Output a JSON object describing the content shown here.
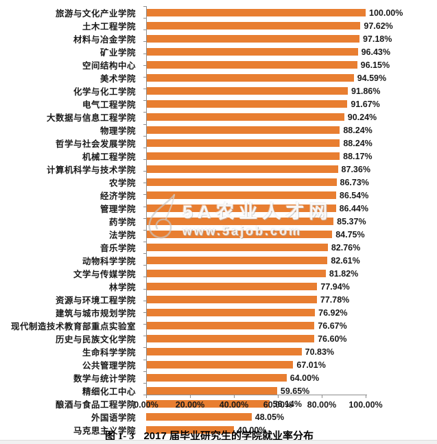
{
  "caption": {
    "figure_label": "图 1- 3",
    "title": "2017 届毕业研究生的学院就业率分布"
  },
  "watermark": {
    "site_name": "5A农业人才网",
    "site_url": "www.5ajob.com"
  },
  "chart_data": {
    "type": "bar",
    "orientation": "horizontal",
    "title": "图 1- 3 2017 届毕业研究生的学院就业率分布",
    "xlabel": "",
    "ylabel": "",
    "xlim": [
      0,
      100
    ],
    "grid": false,
    "legend": "none",
    "bar_color": "#E87E31",
    "axis_color": "#8c8c8c",
    "x_ticks": [
      "0.00%",
      "20.00%",
      "40.00%",
      "60.00%",
      "80.00%",
      "100.00%"
    ],
    "x_tick_values": [
      0,
      20,
      40,
      60,
      80,
      100
    ],
    "categories": [
      "旅游与文化产业学院",
      "土木工程学院",
      "材料与冶金学院",
      "矿业学院",
      "空间结构中心",
      "美术学院",
      "化学与化工学院",
      "电气工程学院",
      "大数据与信息工程学院",
      "物理学院",
      "哲学与社会发展学院",
      "机械工程学院",
      "计算机科学与技术学院",
      "农学院",
      "经济学院",
      "管理学院",
      "药学院",
      "法学院",
      "音乐学院",
      "动物科学学院",
      "文学与传媒学院",
      "林学院",
      "资源与环境工程学院",
      "建筑与城市规划学院",
      "现代制造技术教育部重点实验室",
      "历史与民族文化学院",
      "生命科学学院",
      "公共管理学院",
      "数学与统计学院",
      "精细化工中心",
      "酿酒与食品工程学院",
      "外国语学院",
      "马克思主义学院"
    ],
    "values": [
      100.0,
      97.62,
      97.18,
      96.43,
      96.15,
      94.59,
      91.86,
      91.67,
      90.24,
      88.24,
      88.24,
      88.17,
      87.36,
      86.73,
      86.54,
      86.44,
      85.37,
      84.75,
      82.76,
      82.61,
      81.82,
      77.94,
      77.78,
      76.92,
      76.67,
      76.6,
      70.83,
      67.01,
      64.0,
      59.65,
      56.14,
      48.05,
      40.0
    ],
    "value_labels": [
      "100.00%",
      "97.62%",
      "97.18%",
      "96.43%",
      "96.15%",
      "94.59%",
      "91.86%",
      "91.67%",
      "90.24%",
      "88.24%",
      "88.24%",
      "88.17%",
      "87.36%",
      "86.73%",
      "86.54%",
      "86.44%",
      "85.37%",
      "84.75%",
      "82.76%",
      "82.61%",
      "81.82%",
      "77.94%",
      "77.78%",
      "76.92%",
      "76.67%",
      "76.60%",
      "70.83%",
      "67.01%",
      "64.00%",
      "59.65%",
      "56.14%",
      "48.05%",
      "40.00%"
    ]
  }
}
